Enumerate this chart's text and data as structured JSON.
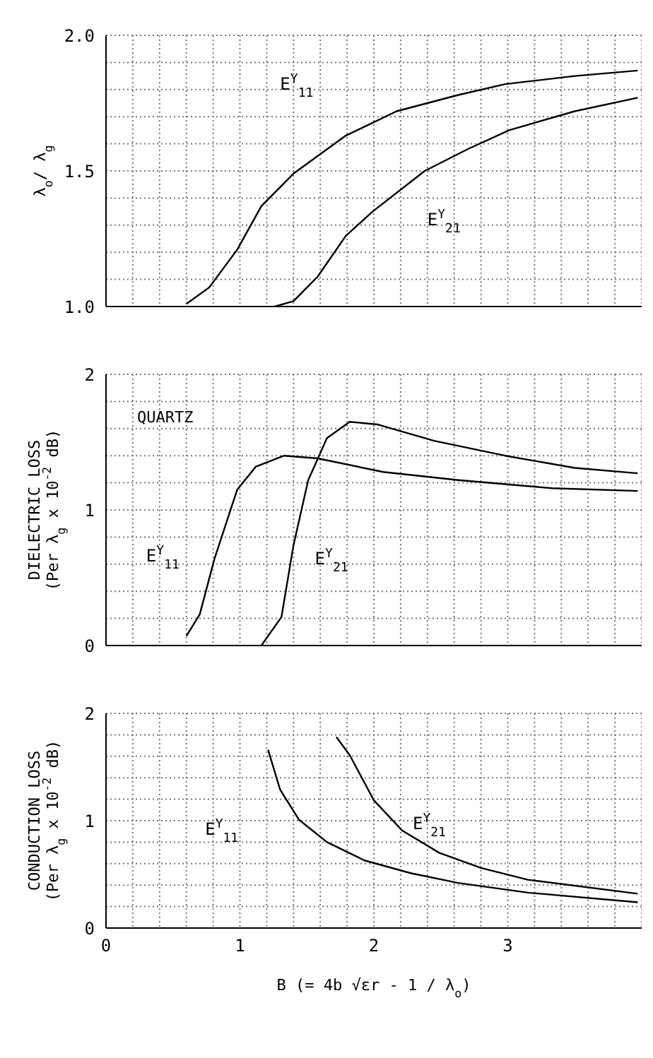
{
  "chart_data": [
    {
      "type": "line",
      "ylabel": "λ$_{o}$/ λ$_{g}$",
      "xlim": [
        0,
        4
      ],
      "ylim": [
        1,
        2
      ],
      "xticks": [
        {
          "value": 0,
          "label": null
        },
        {
          "value": 0.2,
          "label": null
        },
        {
          "value": 0.4,
          "label": null
        },
        {
          "value": 0.6,
          "label": null
        },
        {
          "value": 0.8,
          "label": null
        },
        {
          "value": 1,
          "label": null
        },
        {
          "value": 1.2,
          "label": null
        },
        {
          "value": 1.4,
          "label": null
        },
        {
          "value": 1.6,
          "label": null
        },
        {
          "value": 1.8,
          "label": null
        },
        {
          "value": 2,
          "label": null
        },
        {
          "value": 2.2,
          "label": null
        },
        {
          "value": 2.4,
          "label": null
        },
        {
          "value": 2.6,
          "label": null
        },
        {
          "value": 2.8,
          "label": null
        },
        {
          "value": 3,
          "label": null
        },
        {
          "value": 3.2,
          "label": null
        },
        {
          "value": 3.4,
          "label": null
        },
        {
          "value": 3.6,
          "label": null
        },
        {
          "value": 3.8,
          "label": null
        },
        {
          "value": 4,
          "label": null
        }
      ],
      "yticks": [
        {
          "value": 1,
          "label": "1.0"
        },
        {
          "value": 1.1,
          "label": null
        },
        {
          "value": 1.2,
          "label": null
        },
        {
          "value": 1.3,
          "label": null
        },
        {
          "value": 1.4,
          "label": null
        },
        {
          "value": 1.5,
          "label": "1.5"
        },
        {
          "value": 1.6,
          "label": null
        },
        {
          "value": 1.7,
          "label": null
        },
        {
          "value": 1.8,
          "label": null
        },
        {
          "value": 1.9,
          "label": null
        },
        {
          "value": 2,
          "label": "2.0"
        }
      ],
      "tick_labels": "y",
      "grid": true,
      "series": [
        {
          "name": "E$^{Y}$$_{11}$",
          "color": "#000000",
          "x": [
            0.6,
            0.77,
            0.98,
            1.16,
            1.4,
            1.79,
            2.17,
            2.63,
            2.98,
            3.5,
            3.97
          ],
          "values": [
            1.01,
            1.07,
            1.21,
            1.37,
            1.49,
            1.63,
            1.72,
            1.78,
            1.82,
            1.85,
            1.87
          ]
        },
        {
          "name": "E$^{Y}$$_{21}$",
          "color": "#000000",
          "x": [
            1.26,
            1.4,
            1.58,
            1.79,
            1.99,
            2.38,
            2.7,
            3.01,
            3.5,
            3.97
          ],
          "values": [
            1.0,
            1.02,
            1.11,
            1.26,
            1.35,
            1.5,
            1.58,
            1.65,
            1.72,
            1.77
          ]
        }
      ]
    },
    {
      "type": "line",
      "ylabel": "DIELECTRIC LOSS\n(Per λ$_{g}$ x 10$^{-2}$ dB)",
      "xlim": [
        0,
        4
      ],
      "ylim": [
        0,
        2
      ],
      "xticks": [
        {
          "value": 0,
          "label": null
        },
        {
          "value": 0.2,
          "label": null
        },
        {
          "value": 0.4,
          "label": null
        },
        {
          "value": 0.6,
          "label": null
        },
        {
          "value": 0.8,
          "label": null
        },
        {
          "value": 1,
          "label": null
        },
        {
          "value": 1.2,
          "label": null
        },
        {
          "value": 1.4,
          "label": null
        },
        {
          "value": 1.6,
          "label": null
        },
        {
          "value": 1.8,
          "label": null
        },
        {
          "value": 2,
          "label": null
        },
        {
          "value": 2.2,
          "label": null
        },
        {
          "value": 2.4,
          "label": null
        },
        {
          "value": 2.6,
          "label": null
        },
        {
          "value": 2.8,
          "label": null
        },
        {
          "value": 3,
          "label": null
        },
        {
          "value": 3.2,
          "label": null
        },
        {
          "value": 3.4,
          "label": null
        },
        {
          "value": 3.6,
          "label": null
        },
        {
          "value": 3.8,
          "label": null
        },
        {
          "value": 4,
          "label": null
        }
      ],
      "yticks": [
        0,
        {
          "value": 0.2,
          "label": null
        },
        {
          "value": 0.4,
          "label": null
        },
        {
          "value": 0.6,
          "label": null
        },
        {
          "value": 0.8,
          "label": null
        },
        1,
        {
          "value": 1.2,
          "label": null
        },
        {
          "value": 1.4,
          "label": null
        },
        {
          "value": 1.6,
          "label": null
        },
        {
          "value": 1.8,
          "label": null
        },
        2
      ],
      "tick_labels": "y",
      "grid": true,
      "series": [
        {
          "name": "E$^{Y}$$_{11}$",
          "color": "#000000",
          "x": [
            0.6,
            0.7,
            0.81,
            0.98,
            1.12,
            1.33,
            1.58,
            2.07,
            2.63,
            3.33,
            3.97
          ],
          "values": [
            0.07,
            0.23,
            0.64,
            1.15,
            1.32,
            1.4,
            1.38,
            1.28,
            1.22,
            1.16,
            1.14
          ]
        },
        {
          "name": "E$^{Y}$$_{21}$",
          "color": "#000000",
          "x": [
            1.16,
            1.31,
            1.4,
            1.51,
            1.65,
            1.82,
            2.03,
            2.45,
            2.98,
            3.5,
            3.97
          ],
          "values": [
            0.0,
            0.21,
            0.74,
            1.22,
            1.53,
            1.65,
            1.63,
            1.51,
            1.4,
            1.31,
            1.27
          ]
        }
      ],
      "annotations": [
        "QUARTZ"
      ]
    },
    {
      "type": "line",
      "ylabel": "CONDUCTION LOSS\n(Per λ$_{g}$ x 10$^{-2}$ dB)",
      "xlabel": "B (= 4b √εr - 1 / λ$_{o}$)",
      "xlim": [
        0,
        4
      ],
      "ylim": [
        0,
        2
      ],
      "xticks": [
        0,
        {
          "value": 0.2,
          "label": null
        },
        {
          "value": 0.4,
          "label": null
        },
        {
          "value": 0.6,
          "label": null
        },
        {
          "value": 0.8,
          "label": null
        },
        1,
        {
          "value": 1.2,
          "label": null
        },
        {
          "value": 1.4,
          "label": null
        },
        {
          "value": 1.6,
          "label": null
        },
        {
          "value": 1.8,
          "label": null
        },
        2,
        {
          "value": 2.2,
          "label": null
        },
        {
          "value": 2.4,
          "label": null
        },
        {
          "value": 2.6,
          "label": null
        },
        {
          "value": 2.8,
          "label": null
        },
        3,
        {
          "value": 3.2,
          "label": null
        },
        {
          "value": 3.4,
          "label": null
        },
        {
          "value": 3.6,
          "label": null
        },
        {
          "value": 3.8,
          "label": null
        },
        {
          "value": 4,
          "label": null
        }
      ],
      "yticks": [
        0,
        {
          "value": 0.2,
          "label": null
        },
        {
          "value": 0.4,
          "label": null
        },
        {
          "value": 0.6,
          "label": null
        },
        {
          "value": 0.8,
          "label": null
        },
        1,
        {
          "value": 1.2,
          "label": null
        },
        {
          "value": 1.4,
          "label": null
        },
        {
          "value": 1.6,
          "label": null
        },
        {
          "value": 1.8,
          "label": null
        },
        2
      ],
      "grid": true,
      "series": [
        {
          "name": "E$^{Y}$$_{11}$",
          "color": "#000000",
          "x": [
            1.21,
            1.3,
            1.44,
            1.65,
            1.93,
            2.28,
            2.63,
            3.15,
            3.97
          ],
          "values": [
            1.66,
            1.29,
            1.01,
            0.8,
            0.63,
            0.51,
            0.42,
            0.33,
            0.24
          ]
        },
        {
          "name": "E$^{Y}$$_{21}$",
          "color": "#000000",
          "x": [
            1.72,
            1.82,
            2.0,
            2.21,
            2.49,
            2.8,
            3.15,
            3.97
          ],
          "values": [
            1.78,
            1.61,
            1.19,
            0.91,
            0.7,
            0.56,
            0.45,
            0.32
          ]
        }
      ]
    }
  ]
}
